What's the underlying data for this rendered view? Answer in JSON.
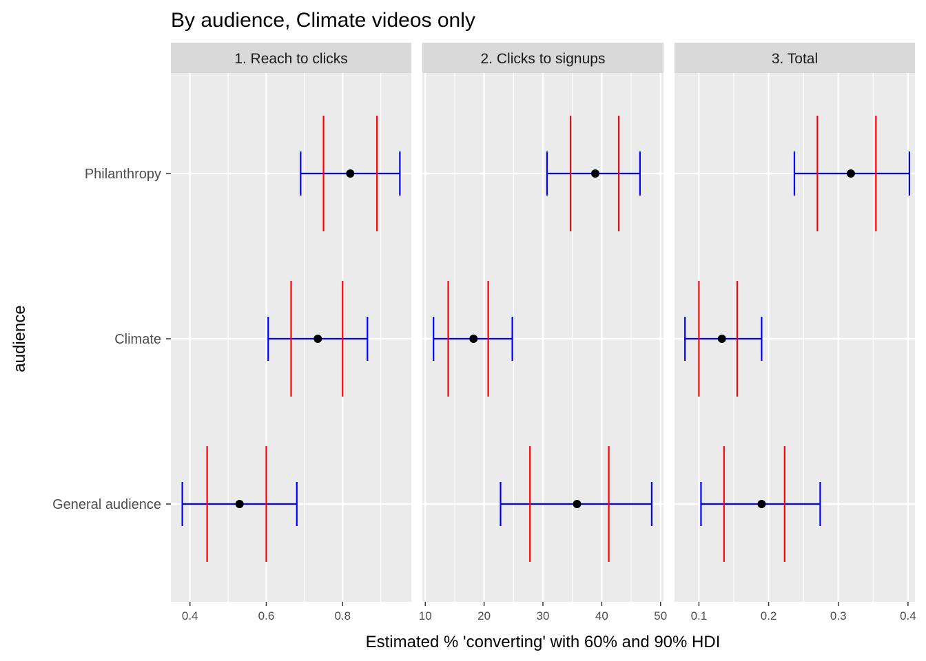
{
  "chart_data": {
    "type": "faceted-interval-plot",
    "title": "By audience, Climate videos only",
    "xlabel": "Estimated % 'converting' with 60% and 90% HDI",
    "ylabel": "audience",
    "categories": [
      "Philanthropy",
      "Climate",
      "General audience"
    ],
    "colors": {
      "hdi90": "#0000ff",
      "hdi60": "#ff0000",
      "point": "#000000",
      "panel_bg": "#ebebeb",
      "strip_bg": "#d9d9d9",
      "grid": "#ffffff"
    },
    "facets": [
      {
        "label": "1. Reach to clicks",
        "xlim": [
          0.35,
          0.98
        ],
        "ticks": [
          0.4,
          0.6,
          0.8
        ],
        "tick_labels": [
          "0.4",
          "0.6",
          "0.8"
        ],
        "minor_ticks": [
          0.5,
          0.7,
          0.9
        ],
        "rows": [
          {
            "audience": "Philanthropy",
            "point": 0.82,
            "hdi60": [
              0.75,
              0.89
            ],
            "hdi90": [
              0.69,
              0.95
            ]
          },
          {
            "audience": "Climate",
            "point": 0.735,
            "hdi60": [
              0.665,
              0.8
            ],
            "hdi90": [
              0.605,
              0.865
            ]
          },
          {
            "audience": "General audience",
            "point": 0.53,
            "hdi60": [
              0.445,
              0.6
            ],
            "hdi90": [
              0.38,
              0.68
            ]
          }
        ]
      },
      {
        "label": "2. Clicks to signups",
        "xlim": [
          9.5,
          50.5
        ],
        "ticks": [
          10,
          20,
          30,
          40,
          50
        ],
        "tick_labels": [
          "10",
          "20",
          "30",
          "40",
          "50"
        ],
        "minor_ticks": [
          15,
          25,
          35,
          45
        ],
        "rows": [
          {
            "audience": "Philanthropy",
            "point": 38.9,
            "hdi60": [
              34.7,
              42.9
            ],
            "hdi90": [
              30.7,
              46.5
            ]
          },
          {
            "audience": "Climate",
            "point": 18.2,
            "hdi60": [
              13.9,
              20.7
            ],
            "hdi90": [
              11.4,
              24.8
            ]
          },
          {
            "audience": "General audience",
            "point": 35.8,
            "hdi60": [
              27.8,
              41.2
            ],
            "hdi90": [
              22.8,
              48.5
            ]
          }
        ]
      },
      {
        "label": "3. Total",
        "xlim": [
          0.065,
          0.41
        ],
        "ticks": [
          0.1,
          0.2,
          0.3,
          0.4
        ],
        "tick_labels": [
          "0.1",
          "0.2",
          "0.3",
          "0.4"
        ],
        "minor_ticks": [
          0.15,
          0.25,
          0.35
        ],
        "rows": [
          {
            "audience": "Philanthropy",
            "point": 0.318,
            "hdi60": [
              0.27,
              0.354
            ],
            "hdi90": [
              0.237,
              0.402
            ]
          },
          {
            "audience": "Climate",
            "point": 0.133,
            "hdi60": [
              0.1,
              0.155
            ],
            "hdi90": [
              0.08,
              0.19
            ]
          },
          {
            "audience": "General audience",
            "point": 0.19,
            "hdi60": [
              0.136,
              0.223
            ],
            "hdi90": [
              0.103,
              0.274
            ]
          }
        ]
      }
    ]
  }
}
